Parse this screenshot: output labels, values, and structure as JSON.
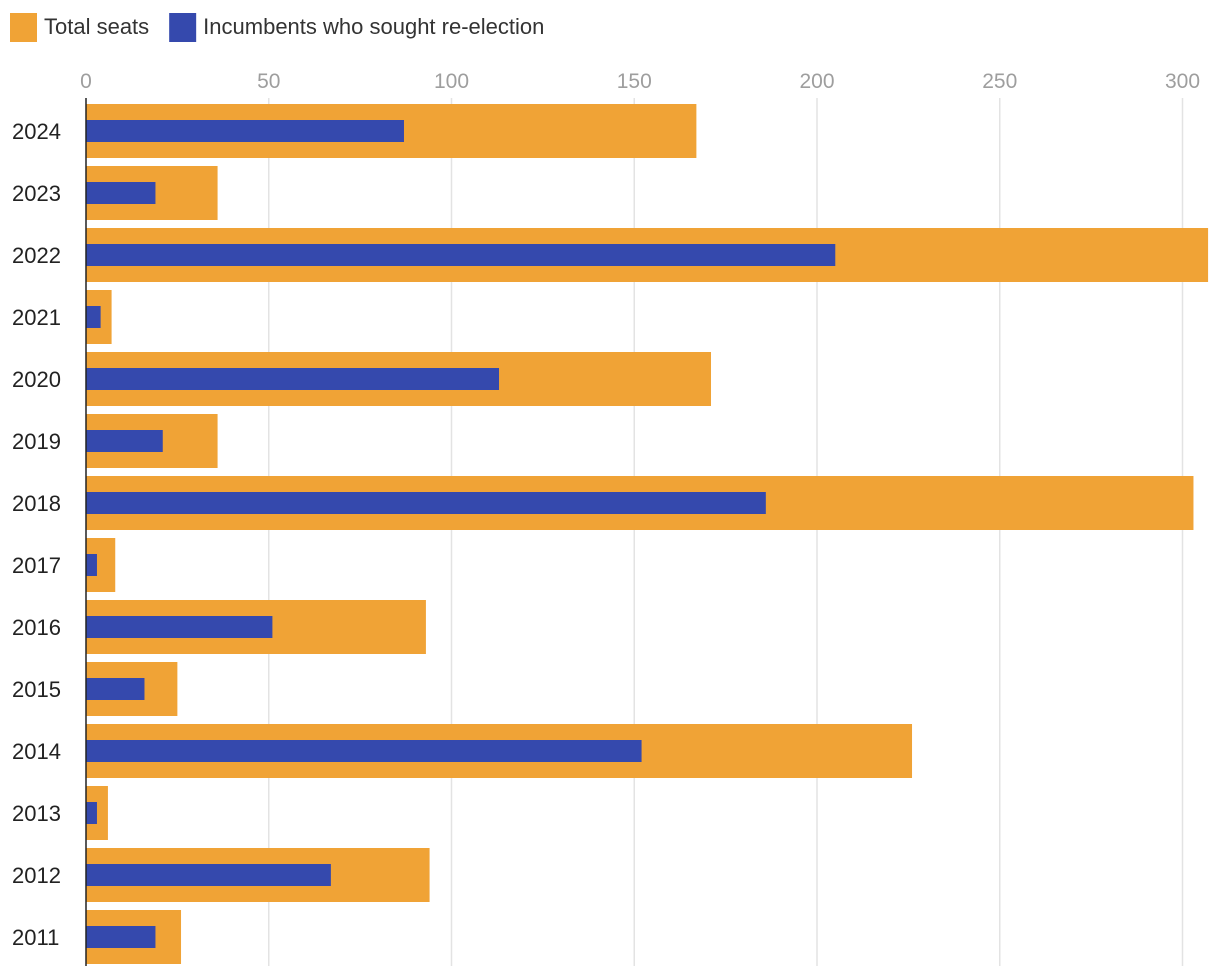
{
  "chart_data": {
    "type": "bar",
    "orientation": "horizontal",
    "categories": [
      "2024",
      "2023",
      "2022",
      "2021",
      "2020",
      "2019",
      "2018",
      "2017",
      "2016",
      "2015",
      "2014",
      "2013",
      "2012",
      "2011"
    ],
    "series": [
      {
        "name": "Total seats",
        "color": "#F0A336",
        "values": [
          167,
          36,
          307,
          7,
          171,
          36,
          303,
          8,
          93,
          25,
          226,
          6,
          94,
          26
        ]
      },
      {
        "name": "Incumbents who sought re-election",
        "color": "#3549AD",
        "values": [
          87,
          19,
          205,
          4,
          113,
          21,
          186,
          3,
          51,
          16,
          152,
          3,
          67,
          19
        ]
      }
    ],
    "xticks": [
      0,
      50,
      100,
      150,
      200,
      250,
      300
    ],
    "xlim": [
      0,
      307
    ],
    "grid": true,
    "legend_position": "top-left",
    "title": "",
    "xlabel": "",
    "ylabel": ""
  }
}
